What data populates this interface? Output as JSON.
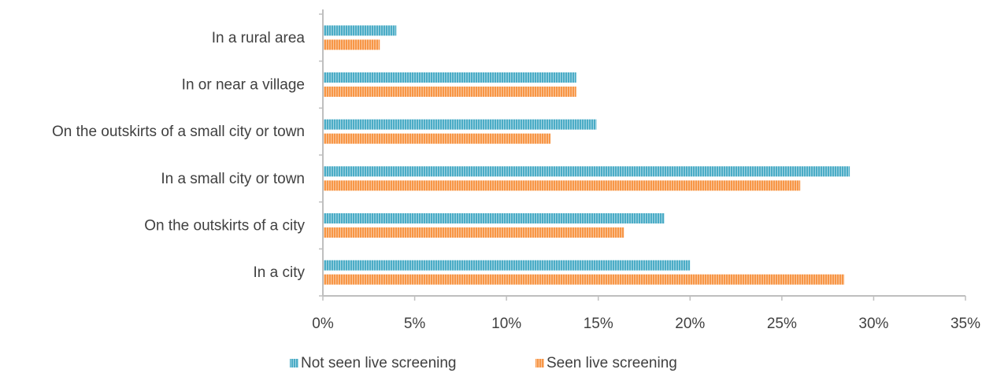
{
  "chart_data": {
    "type": "bar",
    "orientation": "horizontal",
    "categories": [
      "In a rural area",
      "In or near a village",
      "On the outskirts of a small city or town",
      "In a small city or town",
      "On the outskirts of a city",
      "In a city"
    ],
    "series": [
      {
        "name": "Not seen live screening",
        "color": "#4bacc6",
        "values": [
          4.0,
          13.8,
          14.9,
          28.7,
          18.6,
          20.0
        ]
      },
      {
        "name": "Seen live screening",
        "color": "#f79646",
        "values": [
          3.1,
          13.8,
          12.4,
          26.0,
          16.4,
          28.4
        ]
      }
    ],
    "xlim": [
      0,
      35
    ],
    "xticks": [
      "0%",
      "5%",
      "10%",
      "15%",
      "20%",
      "25%",
      "30%",
      "35%"
    ],
    "xtick_values": [
      0,
      5,
      10,
      15,
      20,
      25,
      30,
      35
    ],
    "grid": false,
    "legend_position": "bottom",
    "title": "",
    "xlabel": "",
    "ylabel": ""
  }
}
